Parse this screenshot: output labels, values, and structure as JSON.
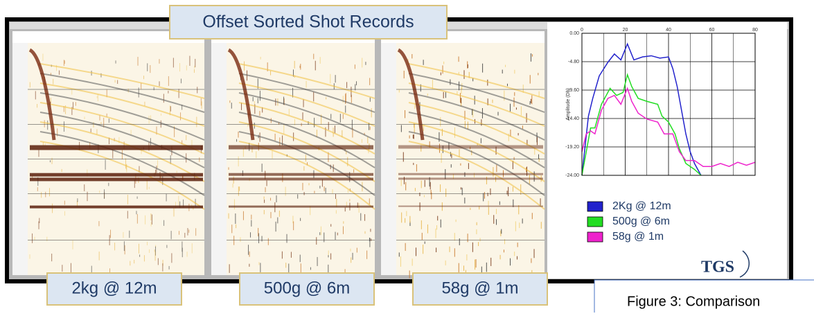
{
  "header": {
    "title": "Offset Sorted Shot Records"
  },
  "panels": [
    {
      "label": "2kg @ 12m"
    },
    {
      "label": "500g @ 6m"
    },
    {
      "label": "58g @ 1m"
    }
  ],
  "caption": "Figure 3: Comparison",
  "logo": "TGS",
  "chart_data": {
    "type": "line",
    "y_label": "Amplitude (Db)",
    "xlim": [
      0,
      80
    ],
    "xticks": [
      0,
      20,
      40,
      60,
      80
    ],
    "ylim": [
      -24,
      0
    ],
    "yticks": [
      {
        "value": 0,
        "label": "0.00"
      },
      {
        "value": -4.8,
        "label": "-4.80"
      },
      {
        "value": -9.6,
        "label": "-9.60"
      },
      {
        "value": -14.4,
        "label": "-14.40"
      },
      {
        "value": -19.2,
        "label": "-19.20"
      },
      {
        "value": -24,
        "label": "-24.00"
      }
    ],
    "grid": true,
    "series": [
      {
        "name": "2Kg @ 12m",
        "color": "#2222cc",
        "x": [
          0,
          3,
          5,
          8,
          12,
          15,
          18,
          21,
          24,
          28,
          32,
          36,
          40,
          42,
          44,
          46,
          48,
          50,
          52,
          55
        ],
        "values": [
          -24,
          -14,
          -11,
          -7.2,
          -4.9,
          -3.5,
          -4.5,
          -1.8,
          -4.5,
          -4,
          -3.8,
          -4.2,
          -4,
          -6,
          -9,
          -13,
          -17,
          -20,
          -22,
          -24
        ]
      },
      {
        "name": "500g @ 6m",
        "color": "#22dd22",
        "x": [
          0,
          2,
          4,
          6,
          9,
          13,
          16,
          19,
          21,
          23,
          26,
          30,
          35,
          37,
          40,
          43,
          45,
          48,
          52,
          55
        ],
        "values": [
          -24,
          -20,
          -16,
          -16,
          -12,
          -9.3,
          -10.5,
          -10,
          -7,
          -9,
          -11,
          -11.5,
          -12,
          -14,
          -15,
          -17,
          -19.5,
          -22,
          -23,
          -24
        ]
      },
      {
        "name": "58g @ 1m",
        "color": "#ee22cc",
        "x": [
          0,
          2,
          4,
          6,
          9,
          12,
          15,
          18,
          21,
          23,
          26,
          30,
          35,
          38,
          42,
          45,
          48,
          52,
          56,
          60,
          64,
          68,
          72,
          76,
          80
        ],
        "values": [
          -20,
          -17,
          -16.5,
          -17,
          -13,
          -11,
          -10.5,
          -12,
          -9.3,
          -11.5,
          -13.5,
          -14.5,
          -15,
          -17,
          -17,
          -20,
          -21.5,
          -21.5,
          -22.5,
          -22.5,
          -22,
          -22.5,
          -21.8,
          -22.3,
          -21.8
        ]
      }
    ],
    "legend": "bottom-right"
  }
}
